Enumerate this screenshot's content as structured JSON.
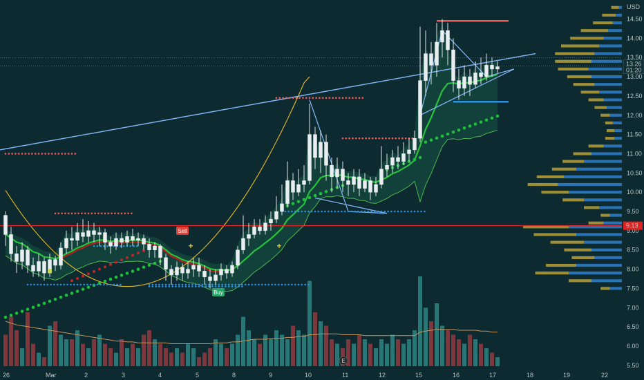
{
  "chart_data": {
    "type": "candlestick",
    "currency": "USD",
    "price_axis": {
      "range": [
        5.3,
        15.0
      ],
      "ticks": [
        "14.50",
        "14.00",
        "13.50",
        "13.00",
        "12.50",
        "12.00",
        "11.50",
        "11.00",
        "10.50",
        "10.00",
        "9.50",
        "9.00",
        "8.50",
        "8.00",
        "7.50",
        "7.00",
        "6.50",
        "6.00",
        "5.50"
      ],
      "tick_values": [
        14.5,
        14.0,
        13.5,
        13.0,
        12.5,
        12.0,
        11.5,
        11.0,
        10.5,
        10.0,
        9.5,
        9.0,
        8.5,
        8.0,
        7.5,
        7.0,
        6.5,
        6.0,
        5.5
      ]
    },
    "time_axis": {
      "labels": [
        "26",
        "Mar",
        "2",
        "3",
        "4",
        "5",
        "8",
        "9",
        "10",
        "11",
        "12",
        "15",
        "16",
        "17",
        "18",
        "19",
        "22"
      ]
    },
    "last_price": {
      "value": "13.26",
      "countdown": "01:20",
      "numeric": 13.26
    },
    "line_label": {
      "value": "9.13",
      "numeric": 9.13,
      "color": "#e02424"
    },
    "candles": [
      [
        9.4,
        8.9,
        9.5,
        8.6
      ],
      [
        8.9,
        8.4,
        9.1,
        8.2
      ],
      [
        8.4,
        8.2,
        8.6,
        7.9
      ],
      [
        8.2,
        8.5,
        8.7,
        8.0
      ],
      [
        8.5,
        8.1,
        8.6,
        7.9
      ],
      [
        8.1,
        7.95,
        8.3,
        7.8
      ],
      [
        7.95,
        8.2,
        8.4,
        7.8
      ],
      [
        8.2,
        7.9,
        8.3,
        7.7
      ],
      [
        7.9,
        8.25,
        8.4,
        7.8
      ],
      [
        8.25,
        8.1,
        8.35,
        7.95
      ],
      [
        8.1,
        8.55,
        8.7,
        8.0
      ],
      [
        8.55,
        8.8,
        9.0,
        8.4
      ],
      [
        8.8,
        8.75,
        9.1,
        8.5
      ],
      [
        8.75,
        8.95,
        9.2,
        8.6
      ],
      [
        8.95,
        8.85,
        9.3,
        8.7
      ],
      [
        8.85,
        9.0,
        9.25,
        8.7
      ],
      [
        9.0,
        8.9,
        9.2,
        8.7
      ],
      [
        8.9,
        8.95,
        9.1,
        8.6
      ],
      [
        8.95,
        8.7,
        9.05,
        8.5
      ],
      [
        8.7,
        8.6,
        8.85,
        8.4
      ],
      [
        8.6,
        8.8,
        8.95,
        8.5
      ],
      [
        8.8,
        8.7,
        8.95,
        8.55
      ],
      [
        8.7,
        8.85,
        9.0,
        8.6
      ],
      [
        8.85,
        8.75,
        9.05,
        8.6
      ],
      [
        8.75,
        8.8,
        8.95,
        8.6
      ],
      [
        8.8,
        8.65,
        8.9,
        8.5
      ],
      [
        8.65,
        8.5,
        8.8,
        8.3
      ],
      [
        8.5,
        8.6,
        8.7,
        8.3
      ],
      [
        8.6,
        8.3,
        8.65,
        8.1
      ],
      [
        8.3,
        8.0,
        8.4,
        7.7
      ],
      [
        8.0,
        7.85,
        8.1,
        7.6
      ],
      [
        7.85,
        8.05,
        8.2,
        7.7
      ],
      [
        8.05,
        7.9,
        8.15,
        7.7
      ],
      [
        7.9,
        8.0,
        8.2,
        7.75
      ],
      [
        8.0,
        8.1,
        8.3,
        7.8
      ],
      [
        8.1,
        7.95,
        8.3,
        7.8
      ],
      [
        7.95,
        7.8,
        8.1,
        7.6
      ],
      [
        7.8,
        7.7,
        8.0,
        7.5
      ],
      [
        7.7,
        7.85,
        8.0,
        7.6
      ],
      [
        7.85,
        8.0,
        8.15,
        7.7
      ],
      [
        8.0,
        7.9,
        8.1,
        7.75
      ],
      [
        7.9,
        8.1,
        8.2,
        7.8
      ],
      [
        8.1,
        8.5,
        8.6,
        8.0
      ],
      [
        8.5,
        8.8,
        9.4,
        8.4
      ],
      [
        8.8,
        8.9,
        9.2,
        8.6
      ],
      [
        8.9,
        9.1,
        9.3,
        8.8
      ],
      [
        9.1,
        9.0,
        9.3,
        8.9
      ],
      [
        9.0,
        9.2,
        9.4,
        8.9
      ],
      [
        9.2,
        9.3,
        9.5,
        9.0
      ],
      [
        9.3,
        9.5,
        9.9,
        9.2
      ],
      [
        9.5,
        9.7,
        10.2,
        9.4
      ],
      [
        9.7,
        10.3,
        10.8,
        9.6
      ],
      [
        10.3,
        10.0,
        10.5,
        9.8
      ],
      [
        10.0,
        10.2,
        10.6,
        9.9
      ],
      [
        10.2,
        10.3,
        10.7,
        10.0
      ],
      [
        10.3,
        11.5,
        12.3,
        10.2
      ],
      [
        11.5,
        10.9,
        11.7,
        10.6
      ],
      [
        10.9,
        11.3,
        11.6,
        10.5
      ],
      [
        11.3,
        10.7,
        11.5,
        10.3
      ],
      [
        10.7,
        10.4,
        10.9,
        10.0
      ],
      [
        10.4,
        10.6,
        10.9,
        10.1
      ],
      [
        10.6,
        10.3,
        10.8,
        10.0
      ],
      [
        10.3,
        10.2,
        10.5,
        9.9
      ],
      [
        10.2,
        10.4,
        10.6,
        10.0
      ],
      [
        10.4,
        10.1,
        10.6,
        9.9
      ],
      [
        10.1,
        10.3,
        10.5,
        10.0
      ],
      [
        10.3,
        10.0,
        10.4,
        9.8
      ],
      [
        10.0,
        10.2,
        10.4,
        9.9
      ],
      [
        10.2,
        10.6,
        11.2,
        10.1
      ],
      [
        10.6,
        10.7,
        11.0,
        10.4
      ],
      [
        10.7,
        10.9,
        11.1,
        10.5
      ],
      [
        10.9,
        10.8,
        11.2,
        10.6
      ],
      [
        10.8,
        11.0,
        11.3,
        10.7
      ],
      [
        11.0,
        11.1,
        11.4,
        10.8
      ],
      [
        11.1,
        11.4,
        11.6,
        11.0
      ],
      [
        11.4,
        12.9,
        14.3,
        11.3
      ],
      [
        12.9,
        13.6,
        14.2,
        12.5
      ],
      [
        13.6,
        13.3,
        13.9,
        12.8
      ],
      [
        13.3,
        13.9,
        14.4,
        13.0
      ],
      [
        13.9,
        14.2,
        14.5,
        13.5
      ],
      [
        14.2,
        13.7,
        14.4,
        13.3
      ],
      [
        13.7,
        12.9,
        14.0,
        12.6
      ],
      [
        12.9,
        12.7,
        13.2,
        12.4
      ],
      [
        12.7,
        13.0,
        13.3,
        12.5
      ],
      [
        13.0,
        12.8,
        13.2,
        12.5
      ],
      [
        12.8,
        13.1,
        13.4,
        12.7
      ],
      [
        13.1,
        13.0,
        13.5,
        12.8
      ],
      [
        13.0,
        13.3,
        13.6,
        12.9
      ],
      [
        13.3,
        13.2,
        13.5,
        13.0
      ],
      [
        13.2,
        13.26,
        13.4,
        13.1
      ]
    ],
    "volume": [
      0.35,
      0.55,
      0.4,
      0.2,
      0.6,
      0.25,
      0.15,
      0.1,
      0.45,
      0.5,
      0.35,
      0.3,
      0.3,
      0.4,
      0.25,
      0.2,
      0.3,
      0.35,
      0.25,
      0.2,
      0.15,
      0.3,
      0.2,
      0.25,
      0.2,
      0.35,
      0.4,
      0.3,
      0.25,
      0.2,
      0.15,
      0.2,
      0.15,
      0.25,
      0.2,
      0.1,
      0.15,
      0.2,
      0.3,
      0.25,
      0.2,
      0.25,
      0.35,
      0.55,
      0.4,
      0.3,
      0.25,
      0.35,
      0.3,
      0.4,
      0.35,
      0.3,
      0.45,
      0.4,
      0.35,
      0.95,
      0.6,
      0.5,
      0.45,
      0.3,
      0.25,
      0.2,
      0.3,
      0.25,
      0.35,
      0.3,
      0.25,
      0.2,
      0.3,
      0.25,
      0.35,
      0.3,
      0.25,
      0.3,
      0.4,
      1.0,
      0.65,
      0.5,
      0.7,
      0.45,
      0.4,
      0.35,
      0.3,
      0.25,
      0.35,
      0.3,
      0.25,
      0.2,
      0.15,
      0.1
    ],
    "volume_avg": [
      0.5,
      0.48,
      0.46,
      0.45,
      0.44,
      0.43,
      0.42,
      0.41,
      0.4,
      0.39,
      0.38,
      0.37,
      0.36,
      0.35,
      0.34,
      0.33,
      0.32,
      0.31,
      0.3,
      0.29,
      0.28,
      0.28,
      0.27,
      0.27,
      0.26,
      0.26,
      0.26,
      0.26,
      0.26,
      0.26,
      0.25,
      0.25,
      0.25,
      0.25,
      0.25,
      0.25,
      0.25,
      0.25,
      0.26,
      0.26,
      0.26,
      0.27,
      0.27,
      0.28,
      0.29,
      0.3,
      0.3,
      0.3,
      0.31,
      0.31,
      0.31,
      0.32,
      0.32,
      0.33,
      0.33,
      0.35,
      0.35,
      0.36,
      0.36,
      0.36,
      0.36,
      0.35,
      0.35,
      0.35,
      0.35,
      0.34,
      0.34,
      0.34,
      0.34,
      0.34,
      0.34,
      0.34,
      0.34,
      0.34,
      0.34,
      0.38,
      0.39,
      0.4,
      0.41,
      0.41,
      0.41,
      0.41,
      0.4,
      0.4,
      0.4,
      0.4,
      0.39,
      0.39,
      0.38,
      0.38
    ],
    "dotted_levels": [
      {
        "price": 11.0,
        "from": 0,
        "to": 13,
        "color": "#f05a5a"
      },
      {
        "price": 9.45,
        "from": 9,
        "to": 23,
        "color": "#f05a5a"
      },
      {
        "price": 8.6,
        "from": 16,
        "to": 24,
        "color": "#2f8fe0"
      },
      {
        "price": 7.6,
        "from": 4,
        "to": 21,
        "color": "#2f8fe0"
      },
      {
        "price": 7.6,
        "from": 26,
        "to": 55,
        "color": "#2f8fe0"
      },
      {
        "price": 7.55,
        "from": 26,
        "to": 43,
        "color": "#2f8fe0"
      },
      {
        "price": 12.45,
        "from": 49,
        "to": 65,
        "color": "#f05a5a"
      },
      {
        "price": 11.4,
        "from": 61,
        "to": 74,
        "color": "#f05a5a"
      },
      {
        "price": 9.5,
        "from": 50,
        "to": 76,
        "color": "#2f8fe0"
      }
    ],
    "signals": [
      {
        "label": "Sell",
        "color": "#e0443c",
        "x": 32,
        "price": 9.0
      },
      {
        "label": "Buy",
        "color": "#26a269",
        "x": 38.5,
        "price": 7.4
      }
    ],
    "volume_profile": [
      [
        14.8,
        0.05,
        0.02
      ],
      [
        14.6,
        0.09,
        0.04
      ],
      [
        14.4,
        0.13,
        0.06
      ],
      [
        14.2,
        0.18,
        0.09
      ],
      [
        14.0,
        0.22,
        0.12
      ],
      [
        13.8,
        0.25,
        0.15
      ],
      [
        13.6,
        0.26,
        0.18
      ],
      [
        13.4,
        0.24,
        0.2
      ],
      [
        13.2,
        0.2,
        0.22
      ],
      [
        13.0,
        0.16,
        0.2
      ],
      [
        12.8,
        0.14,
        0.18
      ],
      [
        12.6,
        0.12,
        0.15
      ],
      [
        12.4,
        0.1,
        0.12
      ],
      [
        12.2,
        0.08,
        0.1
      ],
      [
        12.0,
        0.06,
        0.08
      ],
      [
        11.8,
        0.05,
        0.06
      ],
      [
        11.6,
        0.05,
        0.05
      ],
      [
        11.4,
        0.06,
        0.05
      ],
      [
        11.2,
        0.1,
        0.12
      ],
      [
        11.0,
        0.12,
        0.2
      ],
      [
        10.8,
        0.14,
        0.25
      ],
      [
        10.6,
        0.16,
        0.3
      ],
      [
        10.4,
        0.18,
        0.38
      ],
      [
        10.2,
        0.2,
        0.42
      ],
      [
        10.0,
        0.18,
        0.35
      ],
      [
        9.8,
        0.14,
        0.25
      ],
      [
        9.6,
        0.1,
        0.15
      ],
      [
        9.4,
        0.06,
        0.08
      ],
      [
        9.2,
        0.1,
        0.12
      ],
      [
        9.1,
        0.3,
        0.35
      ],
      [
        8.9,
        0.28,
        0.3
      ],
      [
        8.7,
        0.22,
        0.25
      ],
      [
        8.5,
        0.18,
        0.2
      ],
      [
        8.3,
        0.15,
        0.18
      ],
      [
        8.1,
        0.2,
        0.3
      ],
      [
        7.9,
        0.22,
        0.35
      ],
      [
        7.7,
        0.15,
        0.2
      ],
      [
        7.5,
        0.06,
        0.08
      ]
    ]
  }
}
